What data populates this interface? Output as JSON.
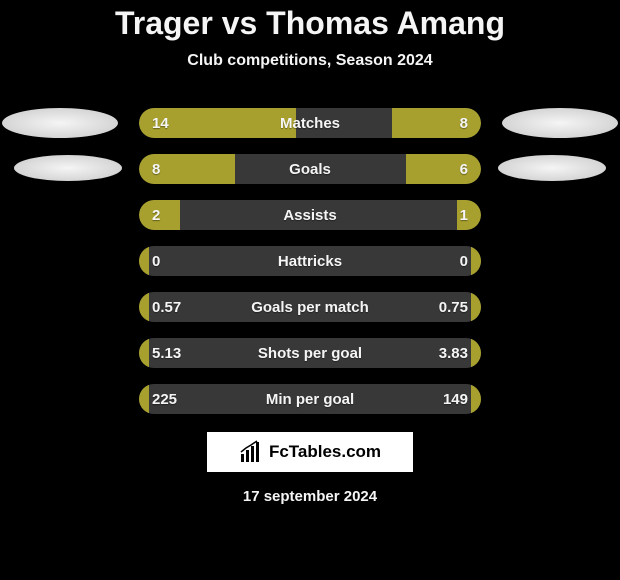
{
  "title": "Trager vs Thomas Amang",
  "subtitle": "Club competitions, Season 2024",
  "date": "17 september 2024",
  "watermark_text": "FcTables.com",
  "colors": {
    "background": "#000000",
    "text": "#f5f5f5",
    "bar_fill": "#a8a02e",
    "bar_empty": "#383838",
    "badge": "#e8e8e8",
    "watermark_bg": "#ffffff"
  },
  "stats": [
    {
      "label": "Matches",
      "left_value": "14",
      "right_value": "8",
      "left_fill_pct": 46,
      "right_fill_pct": 26
    },
    {
      "label": "Goals",
      "left_value": "8",
      "right_value": "6",
      "left_fill_pct": 28,
      "right_fill_pct": 22
    },
    {
      "label": "Assists",
      "left_value": "2",
      "right_value": "1",
      "left_fill_pct": 12,
      "right_fill_pct": 7
    },
    {
      "label": "Hattricks",
      "left_value": "0",
      "right_value": "0",
      "left_fill_pct": 3,
      "right_fill_pct": 3
    },
    {
      "label": "Goals per match",
      "left_value": "0.57",
      "right_value": "0.75",
      "left_fill_pct": 3,
      "right_fill_pct": 3
    },
    {
      "label": "Shots per goal",
      "left_value": "5.13",
      "right_value": "3.83",
      "left_fill_pct": 3,
      "right_fill_pct": 3
    },
    {
      "label": "Min per goal",
      "left_value": "225",
      "right_value": "149",
      "left_fill_pct": 3,
      "right_fill_pct": 3
    }
  ]
}
